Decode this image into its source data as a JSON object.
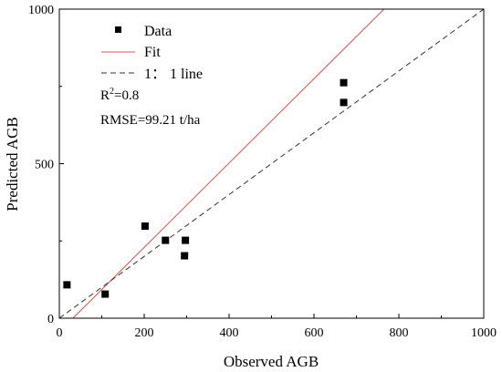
{
  "chart_data": {
    "type": "scatter",
    "xlabel": "Observed AGB",
    "ylabel": "Predicted AGB",
    "xlim": [
      0,
      1000
    ],
    "ylim": [
      0,
      1000
    ],
    "x_ticks": [
      0,
      200,
      400,
      600,
      800,
      1000
    ],
    "y_ticks": [
      0,
      500,
      1000
    ],
    "x_tick_labels": [
      "0",
      "200",
      "400",
      "600",
      "800",
      "1000"
    ],
    "y_tick_labels": [
      "0",
      "500",
      "1000"
    ],
    "grid": false,
    "legend_position": "top-left",
    "series": [
      {
        "name": "Data",
        "kind": "scatter",
        "marker": "square",
        "color": "#000000",
        "points": [
          {
            "x": 18,
            "y": 108
          },
          {
            "x": 108,
            "y": 78
          },
          {
            "x": 202,
            "y": 298
          },
          {
            "x": 250,
            "y": 252
          },
          {
            "x": 297,
            "y": 252
          },
          {
            "x": 295,
            "y": 202
          },
          {
            "x": 670,
            "y": 762
          },
          {
            "x": 670,
            "y": 698
          }
        ]
      },
      {
        "name": "Fit",
        "kind": "line",
        "color": "#d9534f",
        "dash": "solid",
        "points": [
          {
            "x": 32,
            "y": 0
          },
          {
            "x": 765,
            "y": 1000
          }
        ]
      },
      {
        "name": "1： 1 line",
        "kind": "line",
        "color": "#333333",
        "dash": "dashed",
        "points": [
          {
            "x": 0,
            "y": 0
          },
          {
            "x": 1000,
            "y": 1000
          }
        ]
      }
    ],
    "annotations": {
      "r2_prefix": "R",
      "r2_sup": "2",
      "r2_suffix": "=0.8",
      "rmse": "RMSE=99.21 t/ha"
    }
  }
}
